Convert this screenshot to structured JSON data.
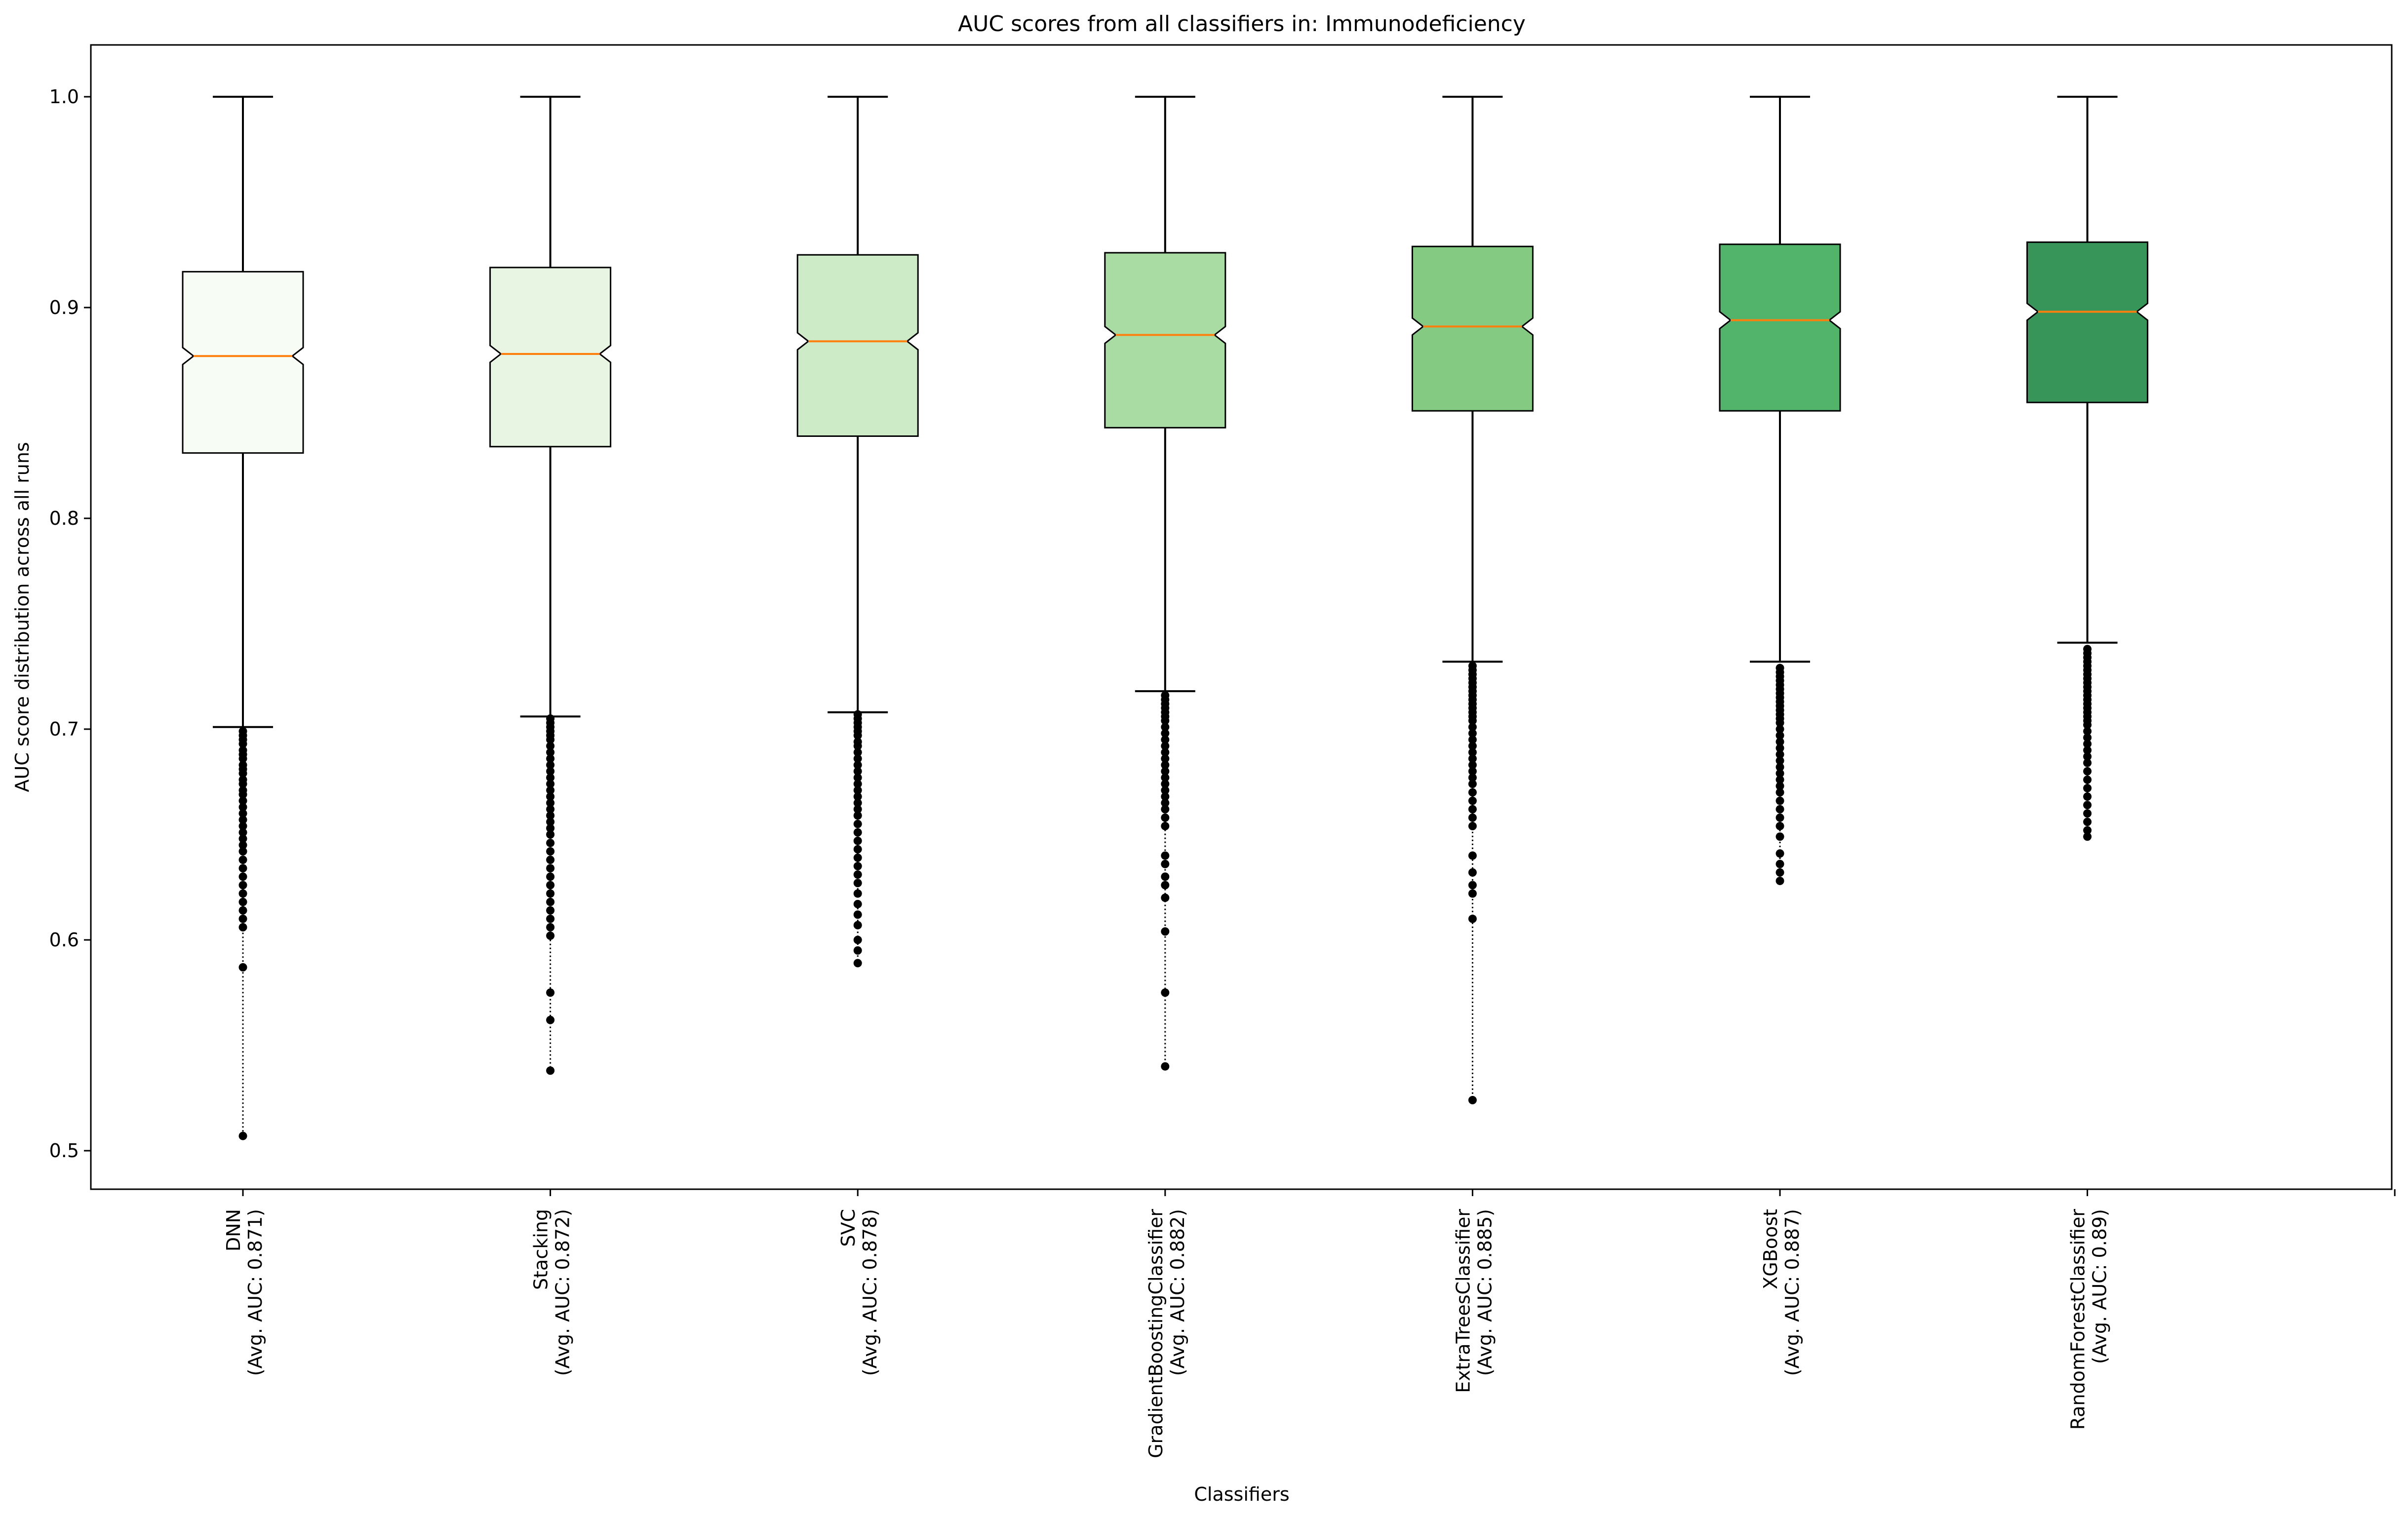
{
  "chart_data": {
    "type": "box",
    "title": "AUC scores from all classifiers in: Immunodeficiency",
    "xlabel": "Classifiers",
    "ylabel": "AUC score distribution across all runs",
    "ylim": [
      0.48,
      1.025
    ],
    "yticks": [
      0.5,
      0.6,
      0.7,
      0.8,
      0.9,
      1.0
    ],
    "ytick_labels": [
      "0.5",
      "0.6",
      "0.7",
      "0.8",
      "0.9",
      "1.0"
    ],
    "notched": true,
    "grid": false,
    "median_color": "#ff7f0e",
    "boxes": [
      {
        "name": "DNN",
        "avg_label": "(Avg. AUC: 0.871)",
        "whisker_low": 0.701,
        "q1": 0.831,
        "median": 0.877,
        "q3": 0.917,
        "whisker_high": 1.0,
        "notch_low": 0.873,
        "notch_high": 0.881,
        "color": "#f7fcf5",
        "outliers": [
          0.699,
          0.697,
          0.695,
          0.693,
          0.69,
          0.688,
          0.686,
          0.683,
          0.681,
          0.679,
          0.676,
          0.674,
          0.671,
          0.669,
          0.666,
          0.663,
          0.66,
          0.657,
          0.654,
          0.651,
          0.648,
          0.645,
          0.642,
          0.638,
          0.634,
          0.63,
          0.626,
          0.622,
          0.618,
          0.614,
          0.61,
          0.606,
          0.587,
          0.507
        ]
      },
      {
        "name": "Stacking",
        "avg_label": "(Avg. AUC: 0.872)",
        "whisker_low": 0.706,
        "q1": 0.834,
        "median": 0.878,
        "q3": 0.919,
        "whisker_high": 1.0,
        "notch_low": 0.874,
        "notch_high": 0.882,
        "color": "#e8f5e3",
        "outliers": [
          0.705,
          0.703,
          0.701,
          0.699,
          0.697,
          0.695,
          0.692,
          0.689,
          0.686,
          0.683,
          0.68,
          0.677,
          0.674,
          0.671,
          0.668,
          0.665,
          0.662,
          0.659,
          0.656,
          0.653,
          0.65,
          0.646,
          0.642,
          0.638,
          0.634,
          0.63,
          0.626,
          0.622,
          0.618,
          0.614,
          0.61,
          0.606,
          0.602,
          0.575,
          0.562,
          0.538
        ]
      },
      {
        "name": "SVC",
        "avg_label": "(Avg. AUC: 0.878)",
        "whisker_low": 0.708,
        "q1": 0.839,
        "median": 0.884,
        "q3": 0.925,
        "whisker_high": 1.0,
        "notch_low": 0.88,
        "notch_high": 0.888,
        "color": "#cdebc7",
        "outliers": [
          0.707,
          0.705,
          0.703,
          0.701,
          0.699,
          0.697,
          0.694,
          0.692,
          0.689,
          0.686,
          0.683,
          0.68,
          0.677,
          0.674,
          0.671,
          0.668,
          0.665,
          0.662,
          0.659,
          0.655,
          0.651,
          0.647,
          0.643,
          0.639,
          0.635,
          0.631,
          0.627,
          0.622,
          0.617,
          0.612,
          0.607,
          0.6,
          0.595,
          0.589
        ]
      },
      {
        "name": "GradientBoostingClassifier",
        "avg_label": "(Avg. AUC: 0.882)",
        "whisker_low": 0.718,
        "q1": 0.843,
        "median": 0.887,
        "q3": 0.926,
        "whisker_high": 1.0,
        "notch_low": 0.883,
        "notch_high": 0.891,
        "color": "#a8dca2",
        "outliers": [
          0.716,
          0.714,
          0.712,
          0.71,
          0.708,
          0.706,
          0.704,
          0.701,
          0.698,
          0.695,
          0.692,
          0.689,
          0.686,
          0.683,
          0.68,
          0.677,
          0.674,
          0.671,
          0.668,
          0.665,
          0.662,
          0.658,
          0.654,
          0.64,
          0.636,
          0.63,
          0.626,
          0.62,
          0.604,
          0.575,
          0.54
        ]
      },
      {
        "name": "ExtraTreesClassifier",
        "avg_label": "(Avg. AUC: 0.885)",
        "whisker_low": 0.732,
        "q1": 0.851,
        "median": 0.891,
        "q3": 0.929,
        "whisker_high": 1.0,
        "notch_low": 0.887,
        "notch_high": 0.895,
        "color": "#84ca83",
        "outliers": [
          0.73,
          0.728,
          0.726,
          0.724,
          0.722,
          0.72,
          0.718,
          0.716,
          0.714,
          0.712,
          0.71,
          0.708,
          0.706,
          0.704,
          0.701,
          0.698,
          0.695,
          0.692,
          0.689,
          0.686,
          0.683,
          0.68,
          0.677,
          0.674,
          0.67,
          0.666,
          0.662,
          0.658,
          0.654,
          0.64,
          0.632,
          0.626,
          0.622,
          0.61,
          0.524
        ]
      },
      {
        "name": "XGBoost",
        "avg_label": "(Avg. AUC: 0.887)",
        "whisker_low": 0.732,
        "q1": 0.851,
        "median": 0.894,
        "q3": 0.93,
        "whisker_high": 1.0,
        "notch_low": 0.89,
        "notch_high": 0.898,
        "color": "#52b36b",
        "outliers": [
          0.729,
          0.727,
          0.725,
          0.723,
          0.721,
          0.719,
          0.717,
          0.715,
          0.713,
          0.711,
          0.709,
          0.707,
          0.705,
          0.703,
          0.7,
          0.697,
          0.694,
          0.691,
          0.688,
          0.685,
          0.682,
          0.679,
          0.676,
          0.673,
          0.67,
          0.666,
          0.662,
          0.658,
          0.654,
          0.649,
          0.641,
          0.636,
          0.632,
          0.628
        ]
      },
      {
        "name": "RandomForestClassifier",
        "avg_label": "(Avg. AUC: 0.89)",
        "whisker_low": 0.741,
        "q1": 0.855,
        "median": 0.898,
        "q3": 0.931,
        "whisker_high": 1.0,
        "notch_low": 0.894,
        "notch_high": 0.902,
        "color": "#37955a",
        "outliers": [
          0.738,
          0.736,
          0.734,
          0.732,
          0.73,
          0.728,
          0.726,
          0.724,
          0.722,
          0.72,
          0.718,
          0.716,
          0.714,
          0.712,
          0.71,
          0.708,
          0.706,
          0.704,
          0.702,
          0.699,
          0.696,
          0.693,
          0.69,
          0.687,
          0.684,
          0.68,
          0.676,
          0.672,
          0.668,
          0.664,
          0.66,
          0.656,
          0.652,
          0.649
        ]
      }
    ]
  }
}
